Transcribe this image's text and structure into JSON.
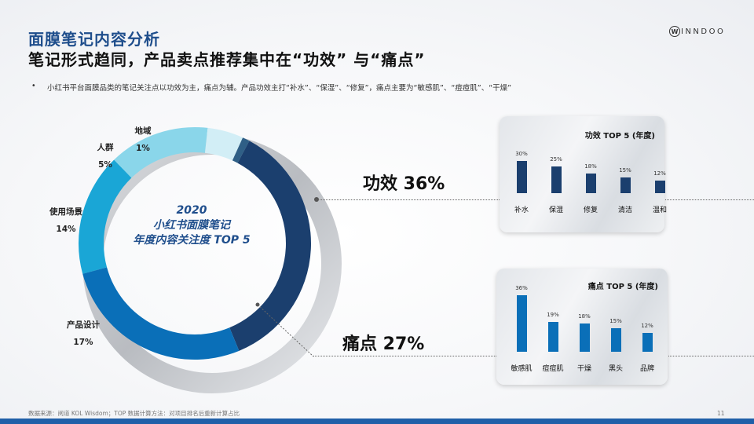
{
  "header": {
    "title": "面膜笔记内容分析",
    "subtitle": "笔记形式趋同，产品卖点推荐集中在“功效” 与“痛点”"
  },
  "logo": {
    "mark": "W",
    "text": "INNDOO"
  },
  "bullet": {
    "dot": "•",
    "text": "小红书平台面膜品类的笔记关注点以功效为主，痛点为辅。产品功效主打“补水”、“保湿”、“修复”，痛点主要为“敏感肌”、“痘痘肌”、“干燥”"
  },
  "donut": {
    "year": "2020",
    "line1": "小红书面膜笔记",
    "line2": "年度内容关注度 TOP 5"
  },
  "big_labels": {
    "gongxiao": "功效 36%",
    "tongdian": "痛点 27%"
  },
  "chart_data": [
    {
      "type": "pie",
      "variant": "donut",
      "categories": [
        "功效",
        "痛点",
        "产品设计",
        "使用场景",
        "人群",
        "地域"
      ],
      "values": [
        36,
        27,
        17,
        14,
        5,
        1
      ],
      "labels": [
        "功效 36%",
        "痛点 27%",
        "产品设计\n17%",
        "使用场景\n14%",
        "人群\n5%",
        "地域\n1%"
      ],
      "colors": [
        "#1b3f6e",
        "#0a6fb8",
        "#1aa6d6",
        "#8ad6ea",
        "#d2eef6",
        "#2f5f86"
      ]
    },
    {
      "type": "bar",
      "title": "功效 TOP 5 (年度)",
      "categories": [
        "补水",
        "保湿",
        "修复",
        "清洁",
        "温和"
      ],
      "values": [
        30,
        25,
        18,
        15,
        12
      ],
      "value_labels": [
        "30%",
        "25%",
        "18%",
        "15%",
        "12%"
      ],
      "color": "#1b3f6e",
      "ylim": [
        0,
        30
      ]
    },
    {
      "type": "bar",
      "title": "痛点 TOP 5 (年度)",
      "categories": [
        "敏感肌",
        "痘痘肌",
        "干燥",
        "黑头",
        "品牌"
      ],
      "values": [
        36,
        19,
        18,
        15,
        12
      ],
      "value_labels": [
        "36%",
        "19%",
        "18%",
        "15%",
        "12%"
      ],
      "color": "#0a6fb8",
      "ylim": [
        0,
        36
      ]
    }
  ],
  "footer": {
    "source": "数据来源：阅道 KOL Wisdom；TOP 数据计算方法：对项目排名后重新计算占比",
    "page": "11"
  }
}
